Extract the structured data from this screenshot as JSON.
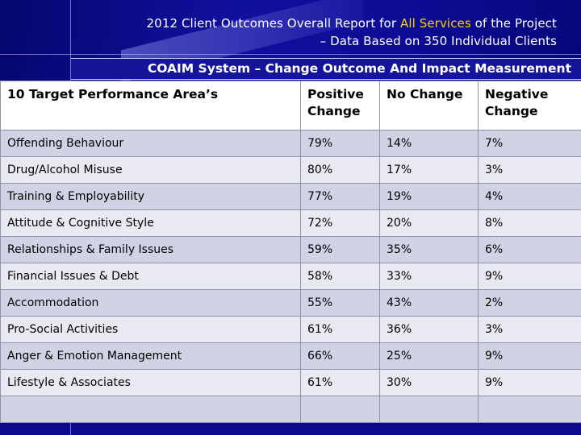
{
  "header": {
    "title_prefix": "2012 Client Outcomes Overall Report for ",
    "title_highlight": "All Services",
    "title_suffix": " of the Project",
    "title_line2": "– Data Based on 350 Individual Clients",
    "highlight_color": "#ffd200",
    "subtitle": "COAIM System – Change Outcome And Impact Measurement"
  },
  "table": {
    "columns": [
      "10 Target Performance Area’s",
      "Positive Change",
      "No Change",
      "Negative Change"
    ],
    "rows": [
      [
        "Offending Behaviour",
        "79%",
        "14%",
        "7%"
      ],
      [
        "Drug/Alcohol Misuse",
        "80%",
        "17%",
        "3%"
      ],
      [
        "Training & Employability",
        "77%",
        "19%",
        "4%"
      ],
      [
        "Attitude & Cognitive Style",
        "72%",
        "20%",
        "8%"
      ],
      [
        "Relationships & Family Issues",
        "59%",
        "35%",
        "6%"
      ],
      [
        "Financial Issues & Debt",
        "58%",
        "33%",
        "9%"
      ],
      [
        "Accommodation",
        "55%",
        "43%",
        "2%"
      ],
      [
        "Pro-Social Activities",
        "61%",
        "36%",
        "3%"
      ],
      [
        "Anger & Emotion Management",
        "66%",
        "25%",
        "9%"
      ],
      [
        "Lifestyle & Associates",
        "61%",
        "30%",
        "9%"
      ],
      [
        "",
        "",
        "",
        ""
      ]
    ]
  }
}
